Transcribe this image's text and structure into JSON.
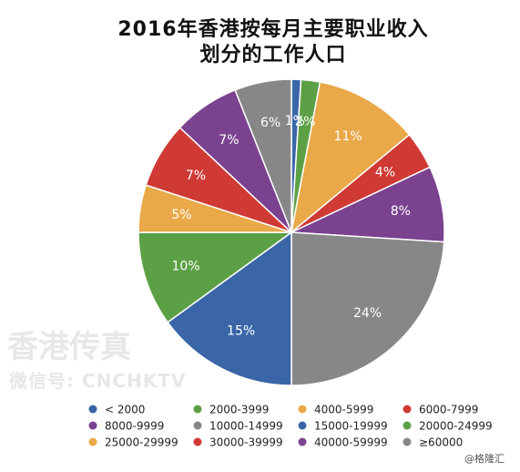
{
  "chart_data": {
    "type": "pie",
    "title_lines": [
      "2016年香港按每月主要职业收入",
      "划分的工作人口"
    ],
    "categories": [
      "< 2000",
      "2000-3999",
      "4000-5999",
      "6000-7999",
      "8000-9999",
      "10000-14999",
      "15000-19999",
      "20000-24999",
      "25000-29999",
      "30000-39999",
      "40000-59999",
      "≥60000"
    ],
    "values": [
      1,
      2,
      11,
      4,
      8,
      24,
      15,
      10,
      5,
      7,
      7,
      6
    ],
    "value_labels": [
      "1%",
      "2%",
      "11%",
      "4%",
      "8%",
      "24%",
      "15%",
      "10%",
      "5%",
      "7%",
      "7%",
      "6%"
    ],
    "colors": [
      "#3a66a8",
      "#5ca046",
      "#e9a948",
      "#cf3a35",
      "#7b4290",
      "#878787",
      "#3a66a8",
      "#5ca046",
      "#e9a948",
      "#cf3a35",
      "#7b4290",
      "#878787"
    ],
    "legend_placement": "bottom"
  },
  "watermark": {
    "line1": "香港传真",
    "line2": "微信号: CNCHKTV"
  },
  "credit": "@格隆汇"
}
